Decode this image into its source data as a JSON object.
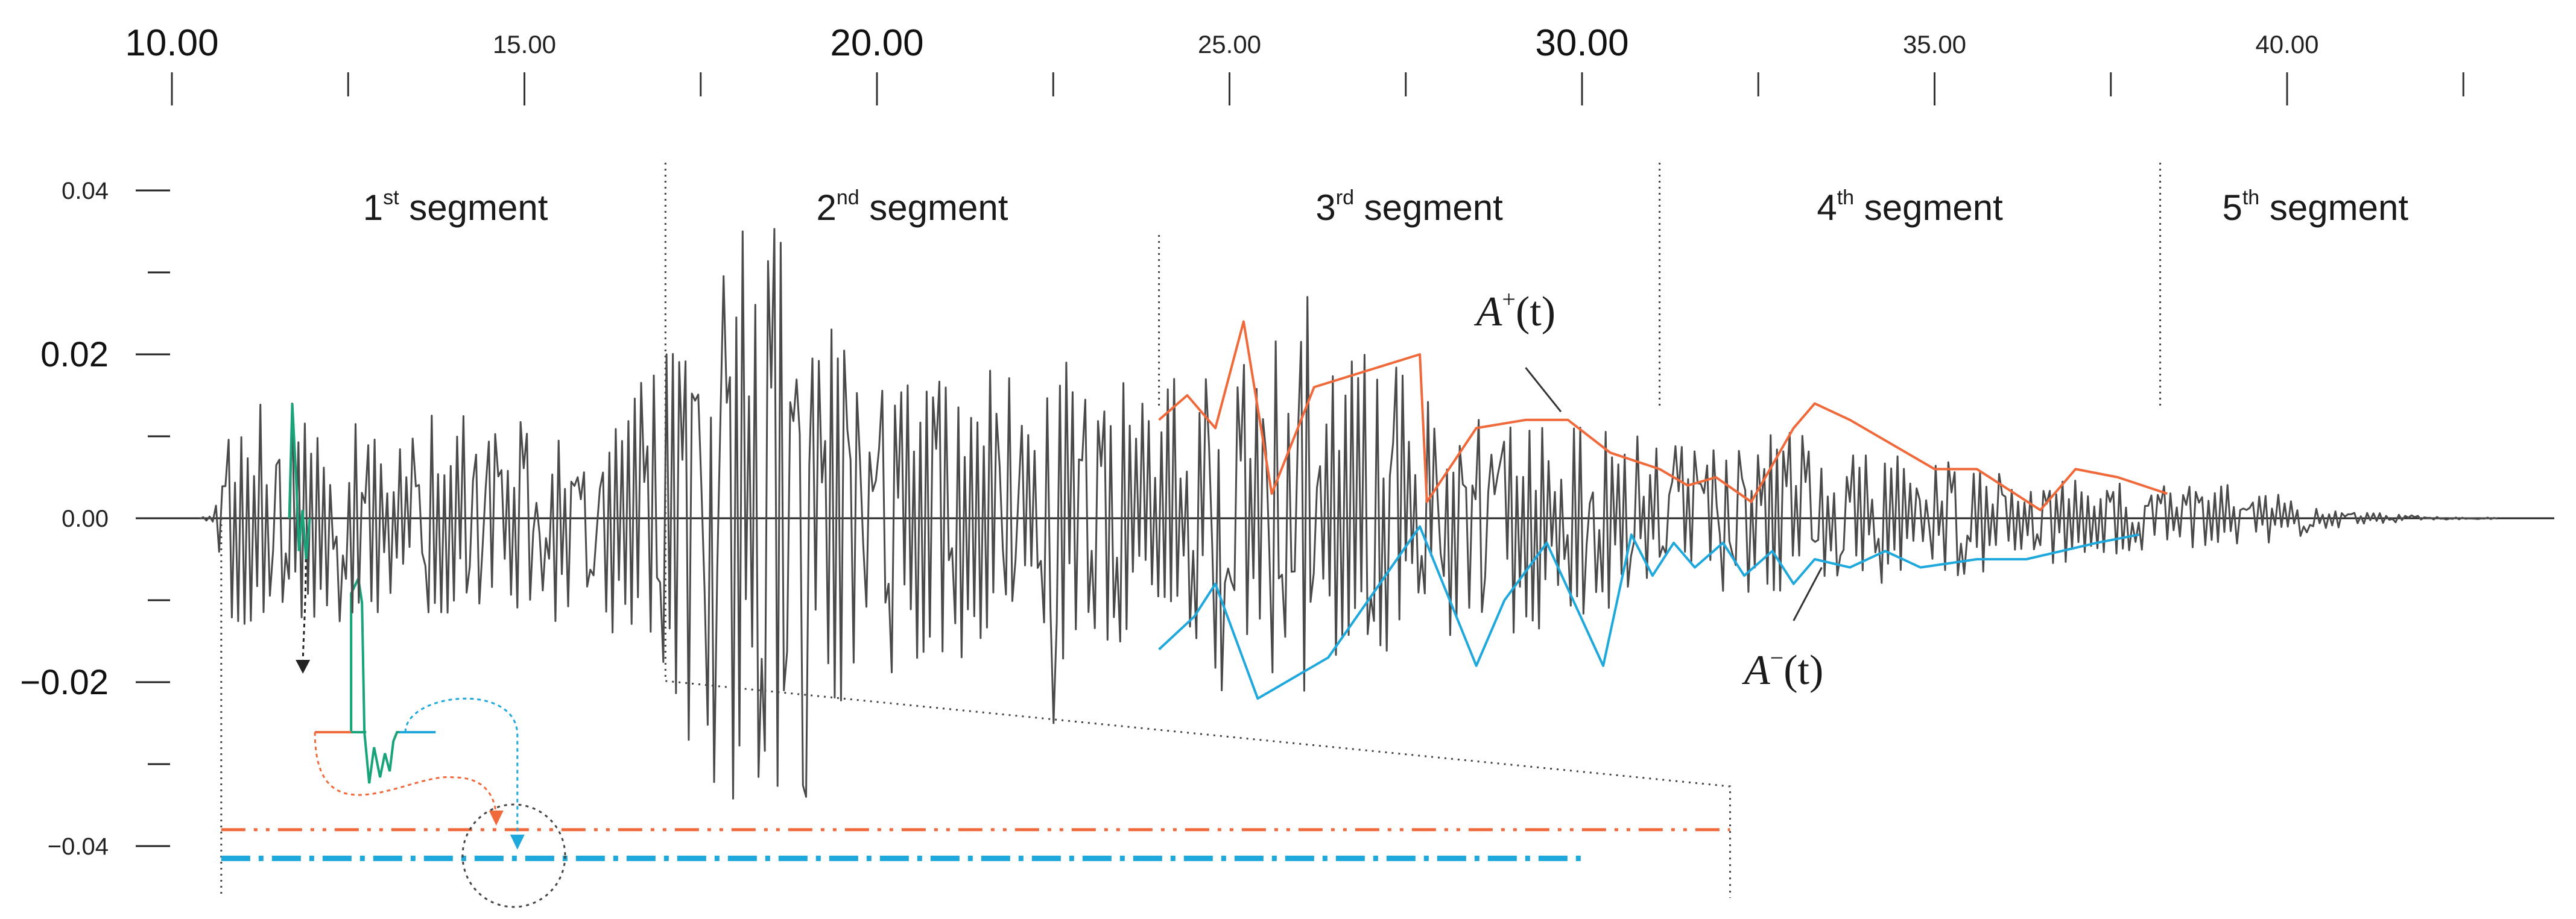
{
  "chart_data": {
    "type": "line",
    "title": "",
    "xlabel": "",
    "ylabel": "",
    "xlim": [
      10.0,
      43.0
    ],
    "ylim": [
      -0.045,
      0.045
    ],
    "x_ticks_labeled": [
      {
        "value": 10,
        "label": "10.00",
        "major": true
      },
      {
        "value": 15,
        "label": "15.00",
        "major": false
      },
      {
        "value": 20,
        "label": "20.00",
        "major": true
      },
      {
        "value": 25,
        "label": "25.00",
        "major": false
      },
      {
        "value": 30,
        "label": "30.00",
        "major": true
      },
      {
        "value": 35,
        "label": "35.00",
        "major": false
      },
      {
        "value": 40,
        "label": "40.00",
        "major": false
      }
    ],
    "x_ticks_unlabeled": [
      12.5,
      17.5,
      22.5,
      27.5,
      32.5,
      37.5,
      42.5
    ],
    "y_ticks_labeled": [
      {
        "value": 0.04,
        "label": "0.04",
        "major": false
      },
      {
        "value": 0.02,
        "label": "0.02",
        "major": true
      },
      {
        "value": 0.0,
        "label": "0.00",
        "major": false
      },
      {
        "value": -0.02,
        "label": "−0.02",
        "major": true
      },
      {
        "value": -0.04,
        "label": "−0.04",
        "major": false
      }
    ],
    "y_ticks_unlabeled": [
      0.03,
      0.01,
      -0.01,
      -0.03
    ],
    "segments": [
      {
        "label": "1",
        "suffix": "st",
        "word": "segment",
        "start": 10.7,
        "end": 17.0
      },
      {
        "label": "2",
        "suffix": "nd",
        "word": "segment",
        "start": 17.0,
        "end": 24.0
      },
      {
        "label": "3",
        "suffix": "rd",
        "word": "segment",
        "start": 24.0,
        "end": 31.1
      },
      {
        "label": "4",
        "suffix": "th",
        "word": "segment",
        "start": 31.1,
        "end": 38.2
      },
      {
        "label": "5",
        "suffix": "th",
        "word": "segment",
        "start": 38.2,
        "end": 43.0
      }
    ],
    "envelope_labels": {
      "upper": {
        "base": "A",
        "sup": "+",
        "arg": "(t)",
        "color": "#f0693a"
      },
      "lower": {
        "base": "A",
        "sup": "−",
        "arg": "(t)",
        "color": "#1fa8dc"
      }
    },
    "series": [
      {
        "color": "#4a4a4a",
        "seed": 7,
        "x_start": 10.4,
        "x_end": 43.0,
        "envelope": [
          [
            10.4,
            0.0002
          ],
          [
            10.6,
            0.0005
          ],
          [
            10.8,
            0.012
          ],
          [
            11.2,
            0.014
          ],
          [
            12.0,
            0.012
          ],
          [
            13.0,
            0.012
          ],
          [
            14.0,
            0.012
          ],
          [
            15.0,
            0.012
          ],
          [
            16.0,
            0.012
          ],
          [
            16.6,
            0.016
          ],
          [
            17.0,
            0.018
          ],
          [
            17.4,
            0.03
          ],
          [
            18.0,
            0.034
          ],
          [
            18.6,
            0.036
          ],
          [
            19.2,
            0.03
          ],
          [
            20.0,
            0.018
          ],
          [
            21.0,
            0.018
          ],
          [
            22.0,
            0.018
          ],
          [
            23.0,
            0.016
          ],
          [
            24.0,
            0.016
          ],
          [
            25.0,
            0.018
          ],
          [
            26.0,
            0.022
          ],
          [
            27.0,
            0.02
          ],
          [
            28.0,
            0.015
          ],
          [
            29.0,
            0.014
          ],
          [
            30.0,
            0.012
          ],
          [
            31.0,
            0.009
          ],
          [
            32.0,
            0.009
          ],
          [
            33.0,
            0.011
          ],
          [
            34.0,
            0.008
          ],
          [
            35.0,
            0.007
          ],
          [
            36.0,
            0.006
          ],
          [
            37.0,
            0.005
          ],
          [
            38.0,
            0.004
          ],
          [
            38.6,
            0.004
          ],
          [
            39.2,
            0.004
          ],
          [
            40.0,
            0.0025
          ],
          [
            41.0,
            0.0008
          ],
          [
            42.0,
            0.0002
          ],
          [
            43.0,
            0.0001
          ]
        ],
        "peaks": [
          [
            11.7,
            0.014
          ],
          [
            17.0,
            0.02
          ],
          [
            18.1,
            0.035
          ],
          [
            18.7,
            -0.021
          ],
          [
            19.0,
            0.044
          ],
          [
            19.0,
            -0.034
          ],
          [
            22.7,
            0.019
          ],
          [
            22.5,
            -0.025
          ],
          [
            26.1,
            0.027
          ],
          [
            24.9,
            -0.021
          ]
        ]
      },
      {
        "name": "A+(t)",
        "color": "#f0693a",
        "x": [
          24.0,
          24.4,
          24.8,
          25.2,
          25.6,
          26.2,
          27.7,
          27.8,
          28.5,
          29.2,
          29.8,
          30.4,
          31.1,
          31.5,
          31.9,
          32.4,
          33.0,
          33.3,
          33.8,
          35.0,
          35.6,
          36.5,
          37.0,
          37.6,
          38.3
        ],
        "y": [
          0.012,
          0.015,
          0.011,
          0.024,
          0.003,
          0.016,
          0.02,
          0.002,
          0.011,
          0.012,
          0.012,
          0.008,
          0.006,
          0.004,
          0.005,
          0.002,
          0.011,
          0.014,
          0.012,
          0.006,
          0.006,
          0.001,
          0.006,
          0.005,
          0.003
        ]
      },
      {
        "name": "A-(t)",
        "color": "#1fa8dc",
        "x": [
          24.0,
          24.5,
          24.8,
          25.4,
          26.4,
          27.7,
          28.5,
          28.9,
          29.5,
          30.3,
          30.7,
          31.0,
          31.3,
          31.6,
          32.0,
          32.3,
          32.7,
          33.0,
          33.3,
          33.8,
          34.3,
          34.8,
          35.6,
          36.3,
          36.8,
          37.3,
          37.9
        ],
        "y": [
          -0.016,
          -0.012,
          -0.008,
          -0.022,
          -0.017,
          -0.001,
          -0.018,
          -0.01,
          -0.003,
          -0.018,
          -0.002,
          -0.007,
          -0.003,
          -0.006,
          -0.003,
          -0.007,
          -0.004,
          -0.008,
          -0.005,
          -0.006,
          -0.004,
          -0.006,
          -0.005,
          -0.005,
          -0.004,
          -0.003,
          -0.002
        ]
      }
    ],
    "inset": {
      "source_x": [
        11.6,
        11.9
      ],
      "upper_level": -0.038,
      "lower_level": -0.0415,
      "upper_color": "#f0693a",
      "lower_color": "#1fa8dc",
      "trace_color": "#18a37a"
    }
  }
}
